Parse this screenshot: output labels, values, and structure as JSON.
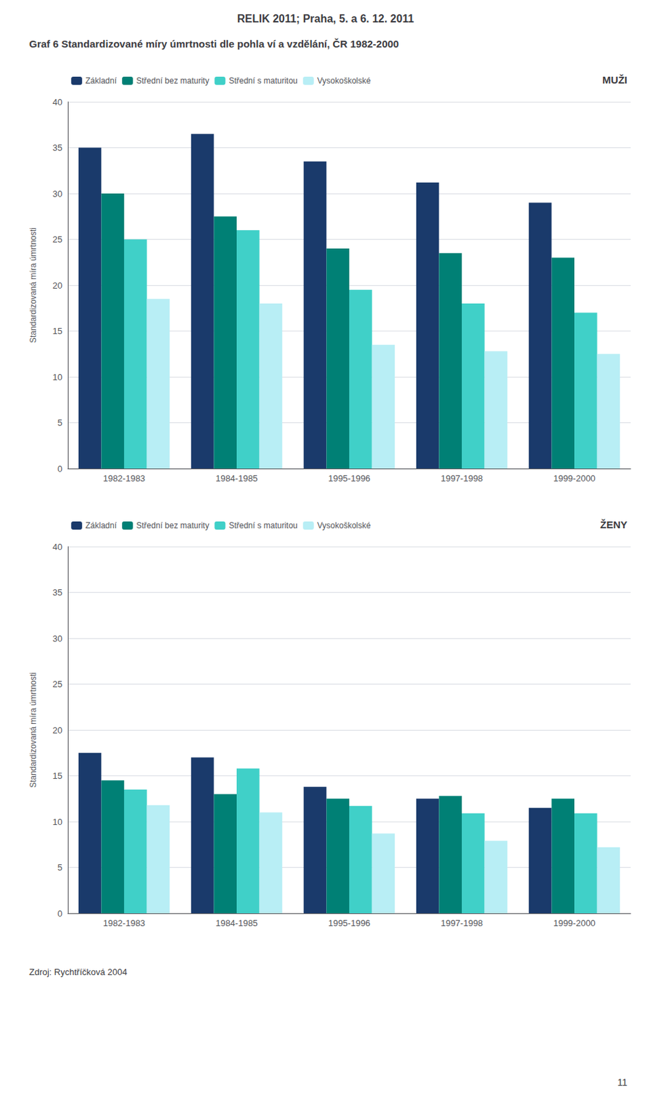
{
  "title": "RELIK 2011; Praha, 5. a 6. 12. 2011",
  "subtitle": "Graf 6 Standardizované míry úmrtnosti dle pohla ví a vzdělání, ČR 1982-2000",
  "annotations": [
    "Zdroj: Rychtříčková 2004",
    "11"
  ],
  "chart_data": [
    {
      "type": "bar",
      "title": "MUŽI",
      "categories": [
        "1982-1983",
        "1984-1985",
        "1995-1996",
        "1997-1998",
        "1999-2000"
      ],
      "series": [
        {
          "name": "Základní",
          "color": "#1a3a6b",
          "values": [
            35.0,
            36.5,
            33.5,
            31.2,
            29.0
          ]
        },
        {
          "name": "Střední bez maturity",
          "color": "#008075",
          "values": [
            30.0,
            27.5,
            24.0,
            23.5,
            23.0
          ]
        },
        {
          "name": "Střední s maturitou",
          "color": "#40d0c8",
          "values": [
            25.0,
            26.0,
            19.5,
            18.0,
            17.0
          ]
        },
        {
          "name": "Vysokoškolské",
          "color": "#b8eef5",
          "values": [
            18.5,
            18.0,
            13.5,
            12.8,
            12.5
          ]
        }
      ],
      "ylabel": "Standardizovaná míra úmrtnosti",
      "ylim": [
        0,
        40
      ],
      "yticks": [
        0,
        5,
        10,
        15,
        20,
        25,
        30,
        35,
        40
      ],
      "grid": true,
      "legend": "upper left"
    },
    {
      "type": "bar",
      "title": "ŽENY",
      "categories": [
        "1982-1983",
        "1984-1985",
        "1995-1996",
        "1997-1998",
        "1999-2000"
      ],
      "series": [
        {
          "name": "Základní",
          "color": "#1a3a6b",
          "values": [
            17.5,
            17.0,
            13.8,
            12.5,
            11.5
          ]
        },
        {
          "name": "Střední bez maturity",
          "color": "#008075",
          "values": [
            14.5,
            13.0,
            12.5,
            12.8,
            12.5
          ]
        },
        {
          "name": "Střední s maturitou",
          "color": "#40d0c8",
          "values": [
            13.5,
            15.8,
            11.7,
            10.9,
            10.9
          ]
        },
        {
          "name": "Vysokoškolské",
          "color": "#b8eef5",
          "values": [
            11.8,
            11.0,
            8.7,
            7.9,
            7.2
          ]
        }
      ],
      "ylabel": "Standardizovaná míra úmrtnosti",
      "ylim": [
        0,
        40
      ],
      "yticks": [
        0,
        5,
        10,
        15,
        20,
        25,
        30,
        35,
        40
      ],
      "grid": true,
      "legend": "upper left"
    }
  ]
}
